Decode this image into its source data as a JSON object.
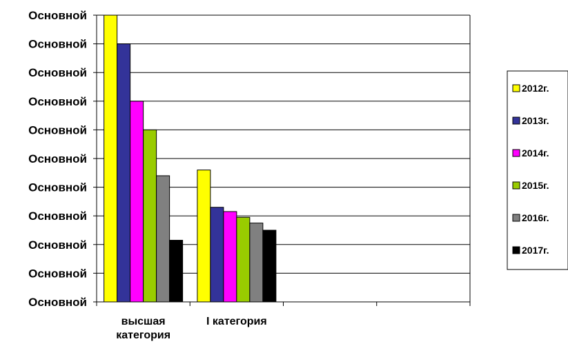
{
  "chart_data": {
    "type": "bar",
    "title": "",
    "xlabel": "",
    "ylabel": "",
    "y_tick_labels": [
      "Основной",
      "Основной",
      "Основной",
      "Основной",
      "Основной",
      "Основной",
      "Основной",
      "Основной",
      "Основной",
      "Основной",
      "Основной"
    ],
    "ylim": [
      0,
      10
    ],
    "grid": true,
    "legend_position": "right",
    "categories": [
      {
        "lines": [
          "высшая",
          "категория"
        ]
      },
      {
        "lines": [
          "I категория"
        ]
      },
      {
        "lines": []
      },
      {
        "lines": []
      }
    ],
    "series": [
      {
        "name": "2012г.",
        "color": "#ffff00",
        "values": [
          10.0,
          4.6,
          null,
          null
        ]
      },
      {
        "name": "2013г.",
        "color": "#333399",
        "values": [
          9.0,
          3.3,
          null,
          null
        ]
      },
      {
        "name": "2014г.",
        "color": "#ff00ff",
        "values": [
          7.0,
          3.15,
          null,
          null
        ]
      },
      {
        "name": "2015г.",
        "color": "#99cc00",
        "values": [
          6.0,
          2.95,
          null,
          null
        ]
      },
      {
        "name": "2016г.",
        "color": "#808080",
        "values": [
          4.4,
          2.75,
          null,
          null
        ]
      },
      {
        "name": "2017г.",
        "color": "#000000",
        "values": [
          2.15,
          2.5,
          null,
          null
        ]
      }
    ]
  }
}
